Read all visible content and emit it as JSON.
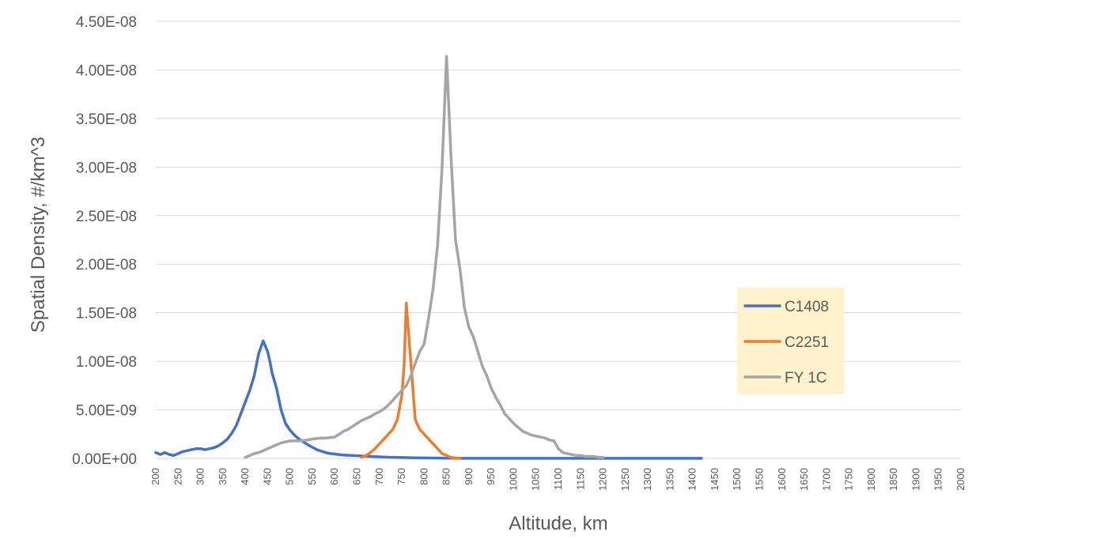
{
  "chart_data": {
    "type": "line",
    "title": "",
    "xlabel": "Altitude, km",
    "ylabel": "Spatial Density, #/km^3",
    "xlim": [
      200,
      2000
    ],
    "ylim": [
      0,
      4.5e-08
    ],
    "x_ticks": [
      "200",
      "250",
      "300",
      "350",
      "400",
      "450",
      "500",
      "550",
      "600",
      "650",
      "700",
      "750",
      "800",
      "850",
      "900",
      "950",
      "1000",
      "1050",
      "1100",
      "1150",
      "1200",
      "1250",
      "1300",
      "1350",
      "1400",
      "1450",
      "1500",
      "1550",
      "1600",
      "1650",
      "1700",
      "1750",
      "1800",
      "1850",
      "1900",
      "1950",
      "2000"
    ],
    "y_ticks": [
      "0.00E+00",
      "5.00E-09",
      "1.00E-08",
      "1.50E-08",
      "2.00E-08",
      "2.50E-08",
      "3.00E-08",
      "3.50E-08",
      "4.00E-08",
      "4.50E-08"
    ],
    "grid": "horizontal",
    "legend_position": "right",
    "series": [
      {
        "name": "C1408",
        "color": "#4472C4",
        "x": [
          200,
          210,
          220,
          230,
          240,
          250,
          260,
          270,
          280,
          290,
          300,
          310,
          320,
          330,
          340,
          350,
          360,
          370,
          380,
          390,
          400,
          410,
          420,
          430,
          440,
          450,
          455,
          460,
          470,
          480,
          490,
          500,
          510,
          520,
          530,
          540,
          550,
          560,
          570,
          580,
          590,
          600,
          620,
          640,
          660,
          680,
          700,
          720,
          740,
          760,
          780,
          800,
          820,
          840,
          860,
          880,
          900,
          950,
          1000,
          1100,
          1200,
          1300,
          1400,
          1420
        ],
        "y": [
          6e-10,
          4e-10,
          6e-10,
          4e-10,
          3e-10,
          5e-10,
          7e-10,
          8e-10,
          9e-10,
          1e-09,
          1e-09,
          9e-10,
          1e-09,
          1.1e-09,
          1.3e-09,
          1.6e-09,
          2e-09,
          2.6e-09,
          3.4e-09,
          4.6e-09,
          5.8e-09,
          7e-09,
          8.5e-09,
          1.08e-08,
          1.21e-08,
          1.1e-08,
          1e-08,
          8.8e-09,
          7.2e-09,
          5e-09,
          3.6e-09,
          2.9e-09,
          2.4e-09,
          2e-09,
          1.7e-09,
          1.4e-09,
          1.15e-09,
          9e-10,
          7.5e-10,
          6e-10,
          5e-10,
          4.5e-10,
          3.5e-10,
          3e-10,
          2.5e-10,
          2e-10,
          1.6e-10,
          1.2e-10,
          1e-10,
          8e-11,
          6e-11,
          5e-11,
          4e-11,
          3e-11,
          2e-11,
          1e-11,
          1e-11,
          1e-11,
          1e-11,
          1e-11,
          1e-11,
          1e-11,
          1e-11,
          1e-11
        ]
      },
      {
        "name": "C2251",
        "color": "#ED7D31",
        "x": [
          660,
          670,
          680,
          690,
          700,
          710,
          720,
          730,
          740,
          750,
          755,
          760,
          770,
          780,
          790,
          800,
          810,
          820,
          830,
          840,
          850,
          860,
          870,
          880
        ],
        "y": [
          1e-10,
          3e-10,
          6e-10,
          1e-09,
          1.5e-09,
          2e-09,
          2.5e-09,
          3e-09,
          4e-09,
          6.5e-09,
          9.5e-09,
          1.6e-08,
          1e-08,
          4e-09,
          3e-09,
          2.5e-09,
          2e-09,
          1.5e-09,
          1e-09,
          5e-10,
          3e-10,
          1e-10,
          5e-11,
          2e-11
        ]
      },
      {
        "name": "FY 1C",
        "color": "#A5A5A5",
        "x": [
          400,
          410,
          420,
          430,
          440,
          450,
          460,
          470,
          480,
          490,
          500,
          510,
          520,
          530,
          540,
          550,
          560,
          570,
          580,
          590,
          600,
          610,
          620,
          630,
          640,
          650,
          660,
          670,
          680,
          690,
          700,
          710,
          720,
          730,
          740,
          750,
          760,
          770,
          780,
          790,
          800,
          810,
          820,
          830,
          840,
          850,
          860,
          870,
          880,
          890,
          900,
          910,
          920,
          930,
          940,
          950,
          960,
          970,
          980,
          990,
          1000,
          1010,
          1020,
          1030,
          1040,
          1050,
          1060,
          1070,
          1080,
          1090,
          1100,
          1110,
          1120,
          1130,
          1140,
          1150,
          1160,
          1170,
          1180,
          1190,
          1200
        ],
        "y": [
          1e-10,
          3e-10,
          5e-10,
          6e-10,
          8e-10,
          1e-09,
          1.2e-09,
          1.4e-09,
          1.6e-09,
          1.7e-09,
          1.8e-09,
          1.8e-09,
          1.8e-09,
          1.85e-09,
          1.9e-09,
          2e-09,
          2.05e-09,
          2.1e-09,
          2.1e-09,
          2.15e-09,
          2.2e-09,
          2.5e-09,
          2.8e-09,
          3e-09,
          3.3e-09,
          3.6e-09,
          3.9e-09,
          4.1e-09,
          4.3e-09,
          4.6e-09,
          4.8e-09,
          5.1e-09,
          5.5e-09,
          6e-09,
          6.5e-09,
          7e-09,
          7.5e-09,
          8.5e-09,
          9.8e-09,
          1.1e-08,
          1.18e-08,
          1.45e-08,
          1.75e-08,
          2.2e-08,
          3e-08,
          4.14e-08,
          3.1e-08,
          2.25e-08,
          1.95e-08,
          1.55e-08,
          1.35e-08,
          1.25e-08,
          1.1e-08,
          9.5e-09,
          8.5e-09,
          7.2e-09,
          6.3e-09,
          5.5e-09,
          4.6e-09,
          4.1e-09,
          3.6e-09,
          3.2e-09,
          2.8e-09,
          2.6e-09,
          2.4e-09,
          2.3e-09,
          2.2e-09,
          2.1e-09,
          1.9e-09,
          1.8e-09,
          1e-09,
          6e-10,
          5e-10,
          4e-10,
          3e-10,
          3e-10,
          2e-10,
          2e-10,
          2e-10,
          1e-10,
          1e-10
        ]
      }
    ]
  }
}
